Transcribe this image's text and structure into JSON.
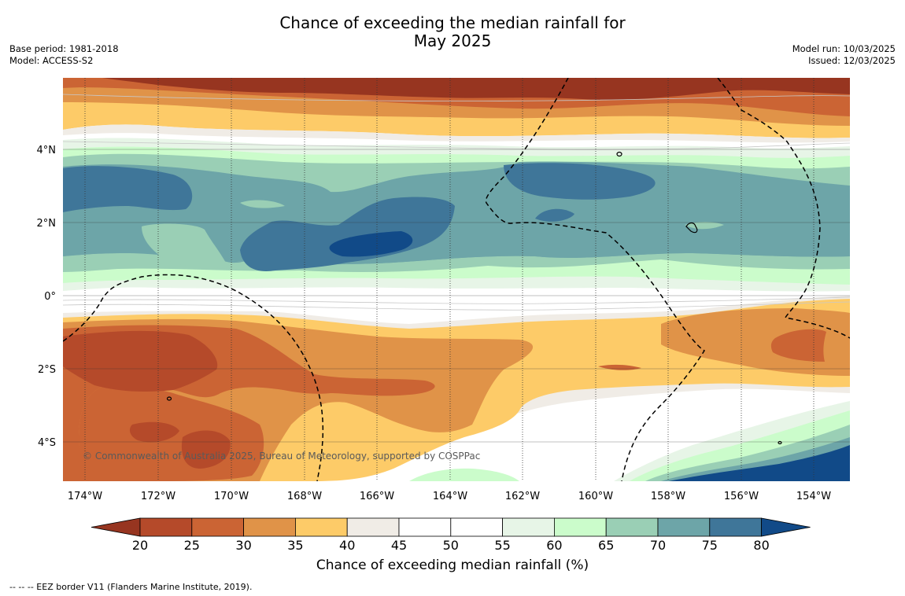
{
  "title_line1": "Chance of exceeding the median rainfall for",
  "title_line2": "May 2025",
  "meta": {
    "base_period": "Base period: 1981-2018",
    "model": "Model: ACCESS-S2",
    "model_run": "Model run: 10/03/2025",
    "issued": "Issued: 12/03/2025"
  },
  "map": {
    "lon_ticks": [
      "174°W",
      "172°W",
      "170°W",
      "168°W",
      "166°W",
      "164°W",
      "162°W",
      "160°W",
      "158°W",
      "156°W",
      "154°W"
    ],
    "lat_ticks": [
      "4°N",
      "2°N",
      "0°",
      "2°S",
      "4°S"
    ],
    "copyright": "© Commonwealth of Australia 2025, Bureau of Meteorology, supported by COSPPac",
    "eez_line_style": "dashed",
    "gridlines": "dotted"
  },
  "colorbar": {
    "title": "Chance of exceeding median rainfall (%)",
    "tick_labels": [
      "20",
      "25",
      "30",
      "35",
      "40",
      "45",
      "50",
      "55",
      "60",
      "65",
      "70",
      "75",
      "80"
    ],
    "colors": {
      "lt20": "#973520",
      "20_25": "#b54a2a",
      "25_30": "#cb6434",
      "30_35": "#e09348",
      "35_40": "#fdcb68",
      "40_45": "#f0ece6",
      "45_50": "#ffffff",
      "50_55": "#ffffff",
      "55_60": "#e7f5e7",
      "60_65": "#cbfccb",
      "65_70": "#9acfb5",
      "70_75": "#6da5a8",
      "75_80": "#3f7699",
      "gt80": "#114a88"
    }
  },
  "footnote": "--  --  -- EEZ border V11 (Flanders Marine Institute, 2019)."
}
